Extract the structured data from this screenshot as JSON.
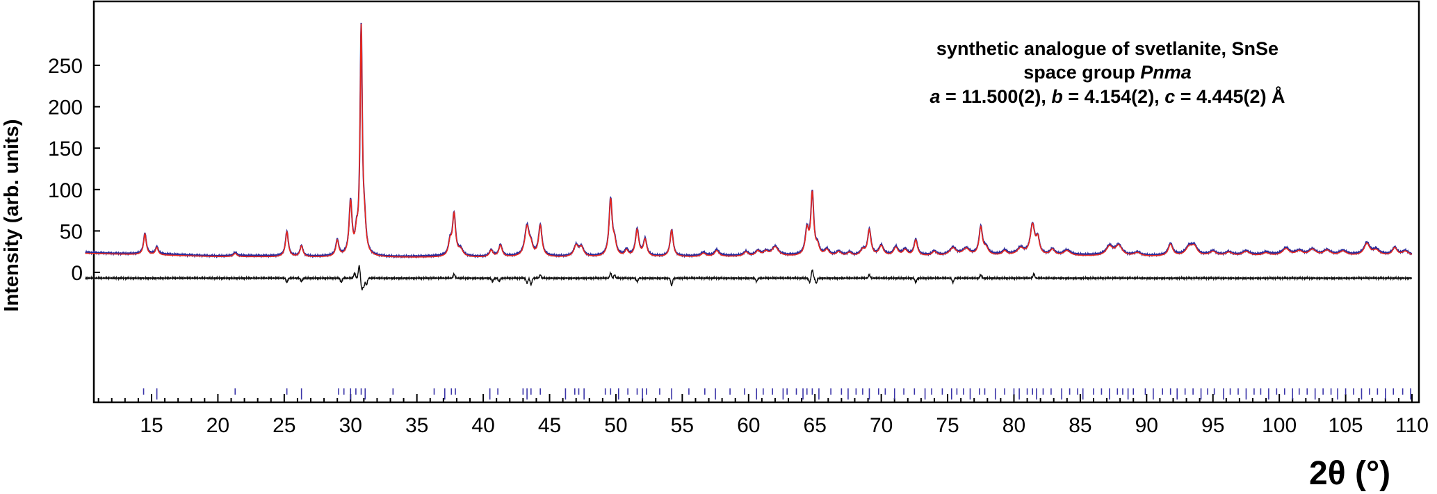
{
  "chart_data": {
    "type": "line",
    "title": "",
    "xlabel": "2θ (°)",
    "ylabel": "Intensity (arb. units)",
    "xlim": [
      10,
      110
    ],
    "ylim": [
      -38,
      300
    ],
    "x_ticks": [
      "15",
      "20",
      "25",
      "30",
      "35",
      "40",
      "45",
      "50",
      "55",
      "60",
      "65",
      "70",
      "75",
      "80",
      "85",
      "90",
      "95",
      "100",
      "105",
      "110"
    ],
    "y_ticks": [
      "0",
      "50",
      "100",
      "150",
      "200",
      "250"
    ],
    "grid": false,
    "legend": "none",
    "colors": {
      "observed": "#2b2b9a",
      "calculated": "#e8281e",
      "difference": "#111111",
      "bragg_ticks": "#3a34a8"
    },
    "annotation": {
      "line1": "synthetic analogue of svetlanite, SnSe",
      "line2_prefix": "space group ",
      "line2_italic": "Pnma",
      "line3_a_sym": "a",
      "line3_a_val": " = 11.500(2), ",
      "line3_b_sym": "b",
      "line3_b_val": " = 4.154(2), ",
      "line3_c_sym": "c",
      "line3_c_val": " = 4.445(2) Å"
    },
    "background": [
      [
        10,
        23
      ],
      [
        20,
        19
      ],
      [
        30,
        18
      ],
      [
        40,
        18
      ],
      [
        50,
        18
      ],
      [
        60,
        19
      ],
      [
        70,
        19
      ],
      [
        80,
        20
      ],
      [
        90,
        19
      ],
      [
        100,
        20
      ],
      [
        110,
        20
      ]
    ],
    "peaks": [
      [
        14.5,
        25,
        0.12
      ],
      [
        15.4,
        9,
        0.12
      ],
      [
        21.3,
        4,
        0.15
      ],
      [
        25.2,
        30,
        0.13
      ],
      [
        26.3,
        13,
        0.13
      ],
      [
        29.0,
        19,
        0.13
      ],
      [
        30.0,
        64,
        0.13
      ],
      [
        30.45,
        20,
        0.12
      ],
      [
        30.8,
        272,
        0.1
      ],
      [
        31.05,
        30,
        0.13
      ],
      [
        37.5,
        16,
        0.14
      ],
      [
        37.8,
        50,
        0.14
      ],
      [
        38.3,
        8,
        0.2
      ],
      [
        40.6,
        8,
        0.15
      ],
      [
        41.3,
        14,
        0.15
      ],
      [
        43.3,
        36,
        0.2
      ],
      [
        43.6,
        10,
        0.15
      ],
      [
        44.3,
        37,
        0.15
      ],
      [
        47.0,
        13,
        0.2
      ],
      [
        47.4,
        11,
        0.2
      ],
      [
        49.6,
        68,
        0.14
      ],
      [
        49.9,
        15,
        0.15
      ],
      [
        50.8,
        7,
        0.15
      ],
      [
        51.6,
        32,
        0.15
      ],
      [
        52.2,
        20,
        0.15
      ],
      [
        54.2,
        32,
        0.14
      ],
      [
        56.6,
        4,
        0.2
      ],
      [
        57.6,
        7,
        0.2
      ],
      [
        59.8,
        5,
        0.2
      ],
      [
        60.7,
        6,
        0.2
      ],
      [
        61.3,
        5,
        0.2
      ],
      [
        62.0,
        11,
        0.3
      ],
      [
        64.4,
        30,
        0.15
      ],
      [
        64.8,
        74,
        0.13
      ],
      [
        65.2,
        10,
        0.15
      ],
      [
        65.9,
        7,
        0.2
      ],
      [
        66.8,
        5,
        0.2
      ],
      [
        67.6,
        4,
        0.2
      ],
      [
        68.6,
        7,
        0.2
      ],
      [
        69.1,
        31,
        0.15
      ],
      [
        70.0,
        12,
        0.2
      ],
      [
        71.1,
        10,
        0.2
      ],
      [
        71.8,
        7,
        0.2
      ],
      [
        72.6,
        19,
        0.15
      ],
      [
        74.0,
        5,
        0.2
      ],
      [
        75.4,
        9,
        0.3
      ],
      [
        76.4,
        8,
        0.3
      ],
      [
        77.5,
        33,
        0.15
      ],
      [
        77.9,
        8,
        0.2
      ],
      [
        79.3,
        5,
        0.2
      ],
      [
        80.5,
        8,
        0.3
      ],
      [
        81.4,
        36,
        0.2
      ],
      [
        81.8,
        18,
        0.15
      ],
      [
        82.9,
        7,
        0.2
      ],
      [
        84.0,
        6,
        0.3
      ],
      [
        87.2,
        11,
        0.3
      ],
      [
        87.9,
        12,
        0.3
      ],
      [
        89.3,
        4,
        0.3
      ],
      [
        91.8,
        14,
        0.2
      ],
      [
        93.2,
        10,
        0.3
      ],
      [
        93.6,
        10,
        0.25
      ],
      [
        95.0,
        5,
        0.3
      ],
      [
        96.2,
        4,
        0.3
      ],
      [
        97.5,
        5,
        0.3
      ],
      [
        99.0,
        3,
        0.3
      ],
      [
        100.5,
        8,
        0.3
      ],
      [
        101.5,
        5,
        0.3
      ],
      [
        102.5,
        7,
        0.3
      ],
      [
        103.6,
        6,
        0.3
      ],
      [
        104.8,
        5,
        0.3
      ],
      [
        106.6,
        14,
        0.25
      ],
      [
        107.3,
        6,
        0.3
      ],
      [
        108.7,
        9,
        0.2
      ],
      [
        109.5,
        5,
        0.3
      ]
    ],
    "difference_offset": -7,
    "difference_spikes": [
      [
        25.2,
        -5
      ],
      [
        26.3,
        -4
      ],
      [
        29.3,
        -5
      ],
      [
        30.3,
        6
      ],
      [
        30.65,
        15
      ],
      [
        30.85,
        -13
      ],
      [
        31.0,
        -10
      ],
      [
        31.2,
        -8
      ],
      [
        37.8,
        5
      ],
      [
        40.7,
        -4
      ],
      [
        41.2,
        -4
      ],
      [
        43.3,
        -6
      ],
      [
        43.6,
        -8
      ],
      [
        44.3,
        4
      ],
      [
        49.6,
        6
      ],
      [
        49.9,
        4
      ],
      [
        51.6,
        -4
      ],
      [
        54.2,
        -9
      ],
      [
        60.6,
        -4
      ],
      [
        64.6,
        -5
      ],
      [
        64.8,
        10
      ],
      [
        65.1,
        -6
      ],
      [
        69.1,
        4
      ],
      [
        72.6,
        -5
      ],
      [
        75.4,
        -5
      ],
      [
        77.5,
        4
      ],
      [
        81.5,
        5
      ]
    ],
    "bragg_ticks": [
      14.4,
      15.4,
      21.3,
      25.2,
      26.3,
      29.1,
      29.5,
      30.0,
      30.4,
      30.8,
      31.1,
      33.2,
      36.3,
      37.1,
      37.6,
      37.9,
      40.5,
      41.1,
      43.0,
      43.3,
      43.6,
      44.3,
      46.2,
      46.9,
      47.2,
      47.6,
      49.2,
      49.6,
      50.2,
      50.9,
      51.6,
      52.0,
      52.3,
      53.3,
      54.2,
      55.5,
      56.7,
      57.5,
      58.6,
      59.7,
      60.6,
      61.1,
      61.8,
      62.6,
      62.9,
      63.6,
      64.1,
      64.4,
      64.8,
      65.3,
      66.2,
      67.0,
      67.5,
      68.1,
      68.6,
      69.1,
      69.8,
      70.3,
      71.0,
      71.7,
      72.5,
      73.3,
      73.8,
      74.6,
      75.3,
      75.7,
      76.2,
      76.7,
      77.4,
      77.8,
      78.6,
      79.3,
      80.0,
      80.4,
      81.0,
      81.4,
      81.7,
      82.2,
      82.8,
      83.6,
      84.2,
      84.8,
      85.2,
      86.0,
      86.6,
      87.2,
      87.8,
      88.2,
      88.6,
      89.0,
      89.9,
      90.5,
      91.2,
      91.8,
      92.3,
      92.9,
      93.5,
      94.1,
      94.6,
      95.1,
      95.8,
      96.3,
      96.9,
      97.5,
      98.1,
      98.6,
      99.2,
      99.8,
      100.4,
      101.0,
      101.5,
      102.1,
      102.7,
      103.3,
      103.9,
      104.4,
      105.0,
      105.6,
      106.2,
      106.8,
      107.4,
      108.0,
      108.6,
      109.3,
      109.9
    ]
  }
}
